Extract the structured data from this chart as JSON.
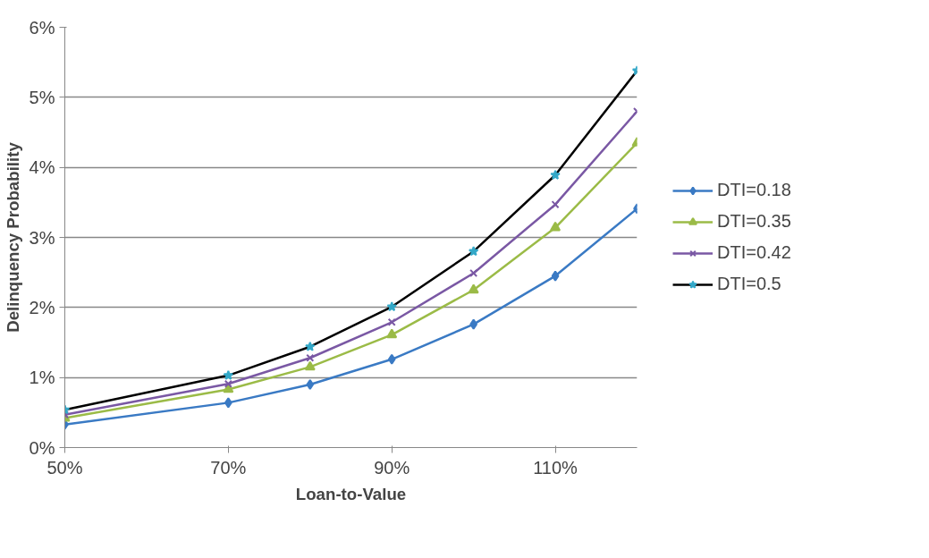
{
  "chart_data": {
    "type": "line",
    "xlabel": "Loan-to-Value",
    "ylabel": "Delinquency Probability",
    "x": [
      50,
      70,
      80,
      90,
      100,
      110,
      120
    ],
    "series": [
      {
        "name": "DTI=0.18",
        "color": "#3a7ac4",
        "marker": "diamond",
        "values": [
          0.33,
          0.64,
          0.9,
          1.26,
          1.76,
          2.45,
          3.41
        ]
      },
      {
        "name": "DTI=0.35",
        "color": "#9bbb47",
        "marker": "triangle",
        "values": [
          0.42,
          0.83,
          1.15,
          1.61,
          2.25,
          3.14,
          4.35
        ]
      },
      {
        "name": "DTI=0.42",
        "color": "#7a58a4",
        "marker": "cross",
        "values": [
          0.47,
          0.91,
          1.28,
          1.79,
          2.49,
          3.47,
          4.8
        ]
      },
      {
        "name": "DTI=0.5",
        "color": "#000000",
        "marker": "star",
        "colors": [
          "#33a8c8",
          "#33a8c8",
          "#33a8c8",
          "#33a8c8",
          "#33a8c8",
          "#33a8c8",
          "#33a8c8"
        ],
        "values": [
          0.54,
          1.03,
          1.44,
          2.01,
          2.8,
          3.89,
          5.38
        ]
      }
    ],
    "xlim": [
      50,
      120
    ],
    "xticks": [
      {
        "value": 50,
        "label": "50%"
      },
      {
        "value": 70,
        "label": "70%"
      },
      {
        "value": 90,
        "label": "90%"
      },
      {
        "value": 110,
        "label": "110%"
      }
    ],
    "ylim": [
      0,
      6
    ],
    "yticks": [
      {
        "value": 0,
        "label": "0%"
      },
      {
        "value": 1,
        "label": "1%"
      },
      {
        "value": 2,
        "label": "2%"
      },
      {
        "value": 3,
        "label": "3%"
      },
      {
        "value": 4,
        "label": "4%"
      },
      {
        "value": 5,
        "label": "5%"
      },
      {
        "value": 6,
        "label": "6%"
      }
    ],
    "grid": "y",
    "legend": "right",
    "line_style": "solid"
  }
}
